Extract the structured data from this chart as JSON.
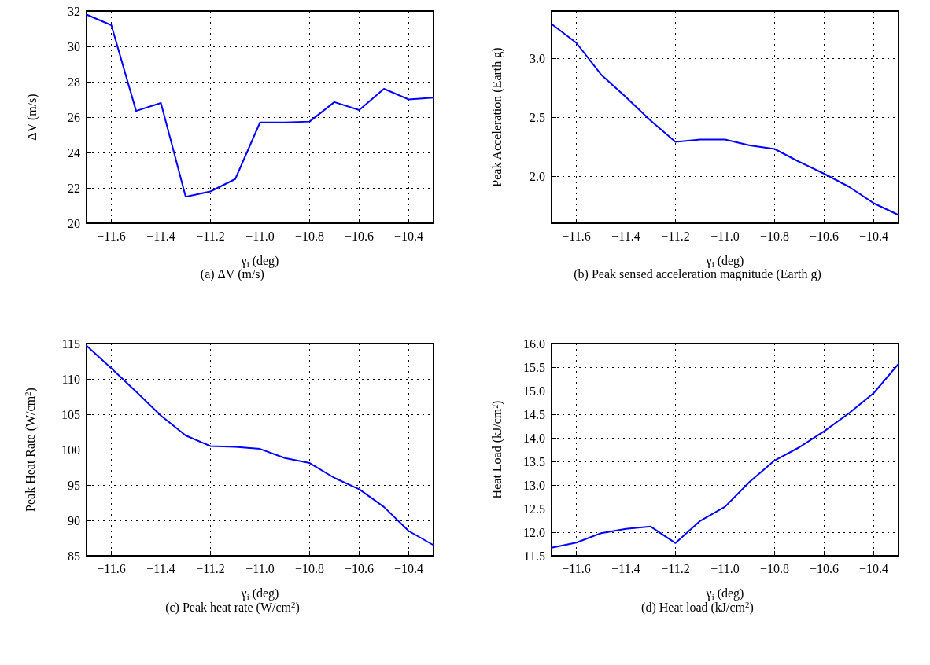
{
  "chart_data": [
    {
      "type": "line",
      "ylabel": "ΔV (m/s)",
      "xlabel": "γ$_{i}$ (deg)",
      "annotations": [
        "(a) ΔV (m/s)"
      ],
      "grid": true,
      "marker": "none",
      "line_style": "solid",
      "xlim": [
        -11.7,
        -10.3
      ],
      "xticks": [
        {
          "value": -11.6,
          "label": "−11.6"
        },
        {
          "value": -11.4,
          "label": "−11.4"
        },
        {
          "value": -11.2,
          "label": "−11.2"
        },
        {
          "value": -11.0,
          "label": "−11.0"
        },
        {
          "value": -10.8,
          "label": "−10.8"
        },
        {
          "value": -10.6,
          "label": "−10.6"
        },
        {
          "value": -10.4,
          "label": "−10.4"
        }
      ],
      "ylim": [
        20,
        32
      ],
      "yticks": [
        20,
        22,
        24,
        26,
        28,
        30,
        32
      ],
      "x": [
        -11.7,
        -11.6,
        -11.5,
        -11.4,
        -11.3,
        -11.2,
        -11.1,
        -11.0,
        -10.9,
        -10.8,
        -10.7,
        -10.6,
        -10.5,
        -10.4,
        -10.3
      ],
      "series": [
        {
          "color": "#0000ff",
          "values": [
            31.8,
            31.2,
            26.35,
            26.8,
            21.5,
            21.8,
            22.5,
            25.7,
            25.7,
            25.75,
            26.85,
            26.4,
            27.6,
            27.0,
            27.1
          ]
        }
      ]
    },
    {
      "type": "line",
      "ylabel": "Peak Acceleration (Earth g)",
      "xlabel": "γ$_{i}$ (deg)",
      "annotations": [
        "(b) Peak sensed acceleration magnitude (Earth g)"
      ],
      "grid": true,
      "marker": "none",
      "line_style": "solid",
      "xlim": [
        -11.7,
        -10.3
      ],
      "xticks": [
        {
          "value": -11.6,
          "label": "−11.6"
        },
        {
          "value": -11.4,
          "label": "−11.4"
        },
        {
          "value": -11.2,
          "label": "−11.2"
        },
        {
          "value": -11.0,
          "label": "−11.0"
        },
        {
          "value": -10.8,
          "label": "−10.8"
        },
        {
          "value": -10.6,
          "label": "−10.6"
        },
        {
          "value": -10.4,
          "label": "−10.4"
        }
      ],
      "ylim": [
        1.6,
        3.4
      ],
      "yticks": [
        {
          "value": 2.0,
          "label": "2.0"
        },
        {
          "value": 2.5,
          "label": "2.5"
        },
        {
          "value": 3.0,
          "label": "3.0"
        }
      ],
      "x": [
        -11.7,
        -11.6,
        -11.5,
        -11.4,
        -11.3,
        -11.2,
        -11.1,
        -11.0,
        -10.9,
        -10.8,
        -10.7,
        -10.6,
        -10.5,
        -10.4,
        -10.3
      ],
      "series": [
        {
          "color": "#0000ff",
          "values": [
            3.29,
            3.13,
            2.86,
            2.67,
            2.47,
            2.29,
            2.31,
            2.31,
            2.26,
            2.23,
            2.12,
            2.02,
            1.91,
            1.77,
            1.67
          ]
        }
      ]
    },
    {
      "type": "line",
      "ylabel": "Peak Heat Rate (W/cm$^{2}$)",
      "xlabel": "γ$_{i}$ (deg)",
      "annotations": [
        "(c) Peak heat rate (W/cm$^{2}$)"
      ],
      "grid": true,
      "marker": "none",
      "line_style": "solid",
      "xlim": [
        -11.7,
        -10.3
      ],
      "xticks": [
        {
          "value": -11.6,
          "label": "−11.6"
        },
        {
          "value": -11.4,
          "label": "−11.4"
        },
        {
          "value": -11.2,
          "label": "−11.2"
        },
        {
          "value": -11.0,
          "label": "−11.0"
        },
        {
          "value": -10.8,
          "label": "−10.8"
        },
        {
          "value": -10.6,
          "label": "−10.6"
        },
        {
          "value": -10.4,
          "label": "−10.4"
        }
      ],
      "ylim": [
        85,
        115
      ],
      "yticks": [
        85,
        90,
        95,
        100,
        105,
        110,
        115
      ],
      "x": [
        -11.7,
        -11.6,
        -11.5,
        -11.4,
        -11.3,
        -11.2,
        -11.1,
        -11.0,
        -10.9,
        -10.8,
        -10.7,
        -10.6,
        -10.5,
        -10.4,
        -10.3
      ],
      "series": [
        {
          "color": "#0000ff",
          "values": [
            114.7,
            111.5,
            108.2,
            104.8,
            102.0,
            100.5,
            100.4,
            100.1,
            98.8,
            98.1,
            96.0,
            94.4,
            91.9,
            88.5,
            86.5
          ]
        }
      ]
    },
    {
      "type": "line",
      "ylabel": "Heat Load (kJ/cm²)",
      "xlabel": "γ$_{i}$ (deg)",
      "annotations": [
        "(d) Heat load (kJ/cm$^{2}$)"
      ],
      "grid": true,
      "marker": "none",
      "line_style": "solid",
      "xlim": [
        -11.7,
        -10.3
      ],
      "xticks": [
        {
          "value": -11.6,
          "label": "−11.6"
        },
        {
          "value": -11.4,
          "label": "−11.4"
        },
        {
          "value": -11.2,
          "label": "−11.2"
        },
        {
          "value": -11.0,
          "label": "−11.0"
        },
        {
          "value": -10.8,
          "label": "−10.8"
        },
        {
          "value": -10.6,
          "label": "−10.6"
        },
        {
          "value": -10.4,
          "label": "−10.4"
        }
      ],
      "ylim": [
        11.5,
        16.0
      ],
      "yticks": [
        {
          "value": 11.5,
          "label": "11.5"
        },
        {
          "value": 12.0,
          "label": "12.0"
        },
        {
          "value": 12.5,
          "label": "12.5"
        },
        {
          "value": 13.0,
          "label": "13.0"
        },
        {
          "value": 13.5,
          "label": "13.5"
        },
        {
          "value": 14.0,
          "label": "14.0"
        },
        {
          "value": 14.5,
          "label": "14.5"
        },
        {
          "value": 15.0,
          "label": "15.0"
        },
        {
          "value": 15.5,
          "label": "15.5"
        },
        {
          "value": 16.0,
          "label": "16.0"
        }
      ],
      "x": [
        -11.7,
        -11.6,
        -11.5,
        -11.4,
        -11.3,
        -11.2,
        -11.1,
        -11.0,
        -10.9,
        -10.8,
        -10.7,
        -10.6,
        -10.5,
        -10.4,
        -10.3
      ],
      "series": [
        {
          "color": "#0000ff",
          "values": [
            11.67,
            11.78,
            11.98,
            12.07,
            12.12,
            11.77,
            12.24,
            12.54,
            13.07,
            13.52,
            13.8,
            14.14,
            14.52,
            14.95,
            15.57
          ]
        }
      ]
    }
  ]
}
